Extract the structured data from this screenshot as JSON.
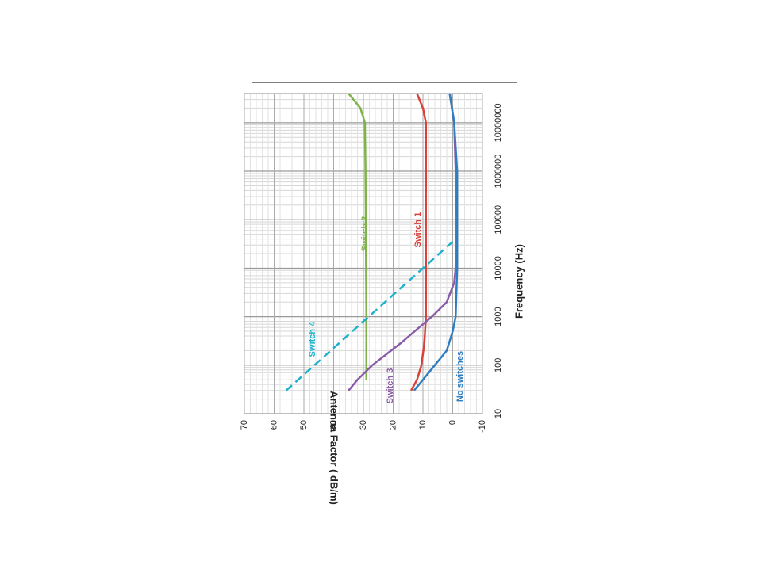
{
  "chart_data": {
    "type": "line",
    "xlabel": "Frequency (Hz)",
    "ylabel": "Antenna Factor ( dB/m)",
    "xscale": "log",
    "grid": true,
    "xlim": [
      10,
      40000000
    ],
    "xticks": [
      10,
      100,
      1000,
      10000,
      100000,
      1000000,
      10000000
    ],
    "ylim": [
      -10,
      70
    ],
    "yticks": [
      -10,
      0,
      10,
      20,
      30,
      40,
      50,
      60,
      70
    ],
    "series": [
      {
        "name": "Switch 1",
        "color": "#d9413a",
        "dash": false,
        "x": [
          30,
          50,
          100,
          300,
          1000,
          100000,
          1000000,
          10000000,
          20000000,
          40000000
        ],
        "values": [
          14,
          12,
          10.5,
          9.5,
          9,
          9,
          9,
          9,
          10,
          12
        ]
      },
      {
        "name": "Switch 2",
        "color": "#7fb24a",
        "dash": false,
        "x": [
          50,
          1000,
          100000,
          1000000,
          10000000,
          20000000,
          40000000
        ],
        "values": [
          29,
          29,
          29.2,
          29.3,
          29.5,
          31,
          35
        ]
      },
      {
        "name": "Switch 3",
        "color": "#8a5ca8",
        "dash": false,
        "x": [
          30,
          50,
          100,
          300,
          1000,
          2000,
          5000,
          10000,
          1000000,
          10000000,
          40000000
        ],
        "values": [
          35,
          32,
          27,
          17,
          7,
          2,
          -0.5,
          -1,
          -1,
          -0.5,
          1
        ]
      },
      {
        "name": "No switches",
        "color": "#2e7dc0",
        "dash": false,
        "x": [
          30,
          50,
          100,
          200,
          500,
          1000,
          10000,
          1000000,
          10000000,
          40000000
        ],
        "values": [
          13,
          10,
          6,
          2,
          0,
          -1,
          -1.5,
          -1.5,
          -0.5,
          1
        ]
      },
      {
        "name": "Switch 4",
        "color": "#1fb0cc",
        "dash": true,
        "x": [
          30,
          40000
        ],
        "values": [
          56,
          -1
        ]
      }
    ]
  }
}
